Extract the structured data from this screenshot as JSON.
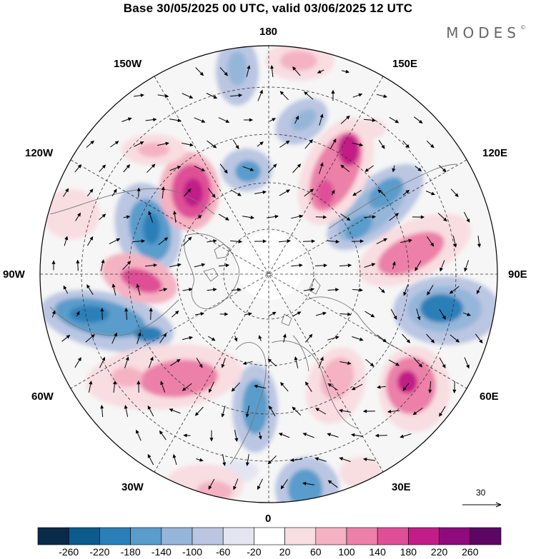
{
  "header": {
    "title": "Base 30/05/2025 00 UTC, valid 03/06/2025 12 UTC",
    "brand": "MODES",
    "brand_mark": "©"
  },
  "map": {
    "projection": "north-polar-stereographic",
    "longitude_labels": {
      "top": "180",
      "bottom": "0",
      "left": "90W",
      "right": "90E",
      "upper_left": "150W",
      "upper_right": "150E",
      "mid_left_upper": "120W",
      "mid_right_upper": "120E",
      "mid_left_lower": "60W",
      "mid_right_lower": "60E",
      "lower_left": "30W",
      "lower_right": "30E"
    },
    "vector_reference": "30"
  },
  "colorbar": {
    "tick_labels": [
      "-260",
      "-220",
      "-180",
      "-140",
      "-100",
      "-60",
      "-20",
      "20",
      "60",
      "100",
      "140",
      "180",
      "220",
      "260"
    ],
    "colors": [
      "#0a2a4a",
      "#0d5a8c",
      "#2a7fb8",
      "#5a9ccb",
      "#95b6d9",
      "#bac6e2",
      "#e3e5f1",
      "#ffffff",
      "#f8dde1",
      "#f4b2c2",
      "#ec80a8",
      "#df4f97",
      "#c21d87",
      "#8f0a7c",
      "#5c0563"
    ]
  }
}
